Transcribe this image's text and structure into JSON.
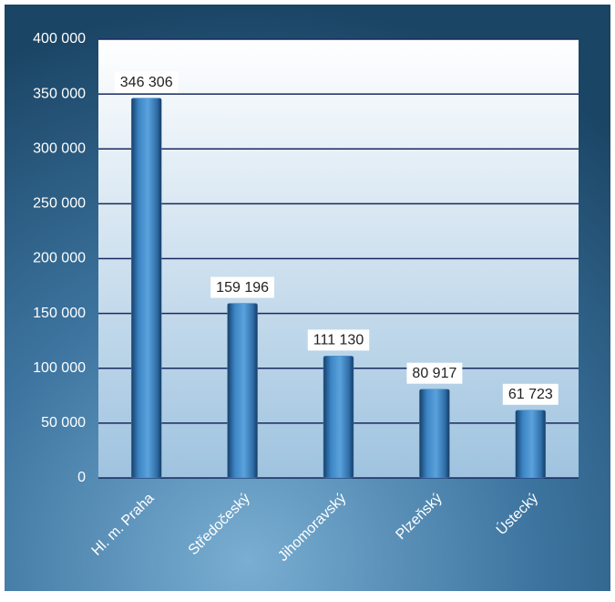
{
  "chart_data": {
    "type": "bar",
    "categories": [
      "Hl. m. Praha",
      "Středočeský",
      "Jihomoravský",
      "Plzeňský",
      "Ústecký"
    ],
    "values": [
      346306,
      159196,
      111130,
      80917,
      61723
    ],
    "value_labels": [
      "346 306",
      "159 196",
      "111 130",
      "80 917",
      "61 723"
    ],
    "color": "#3b86c8",
    "ylim": [
      0,
      400000
    ],
    "yticks": [
      0,
      {
        "value": 50000,
        "label": "50 000"
      },
      {
        "value": 100000,
        "label": "100 000"
      },
      {
        "value": 150000,
        "label": "150 000"
      },
      {
        "value": 200000,
        "label": "200 000"
      },
      {
        "value": 250000,
        "label": "250 000"
      },
      {
        "value": 300000,
        "label": "300 000"
      },
      {
        "value": 350000,
        "label": "350 000"
      },
      {
        "value": 400000,
        "label": "400 000"
      }
    ],
    "grid": true
  }
}
